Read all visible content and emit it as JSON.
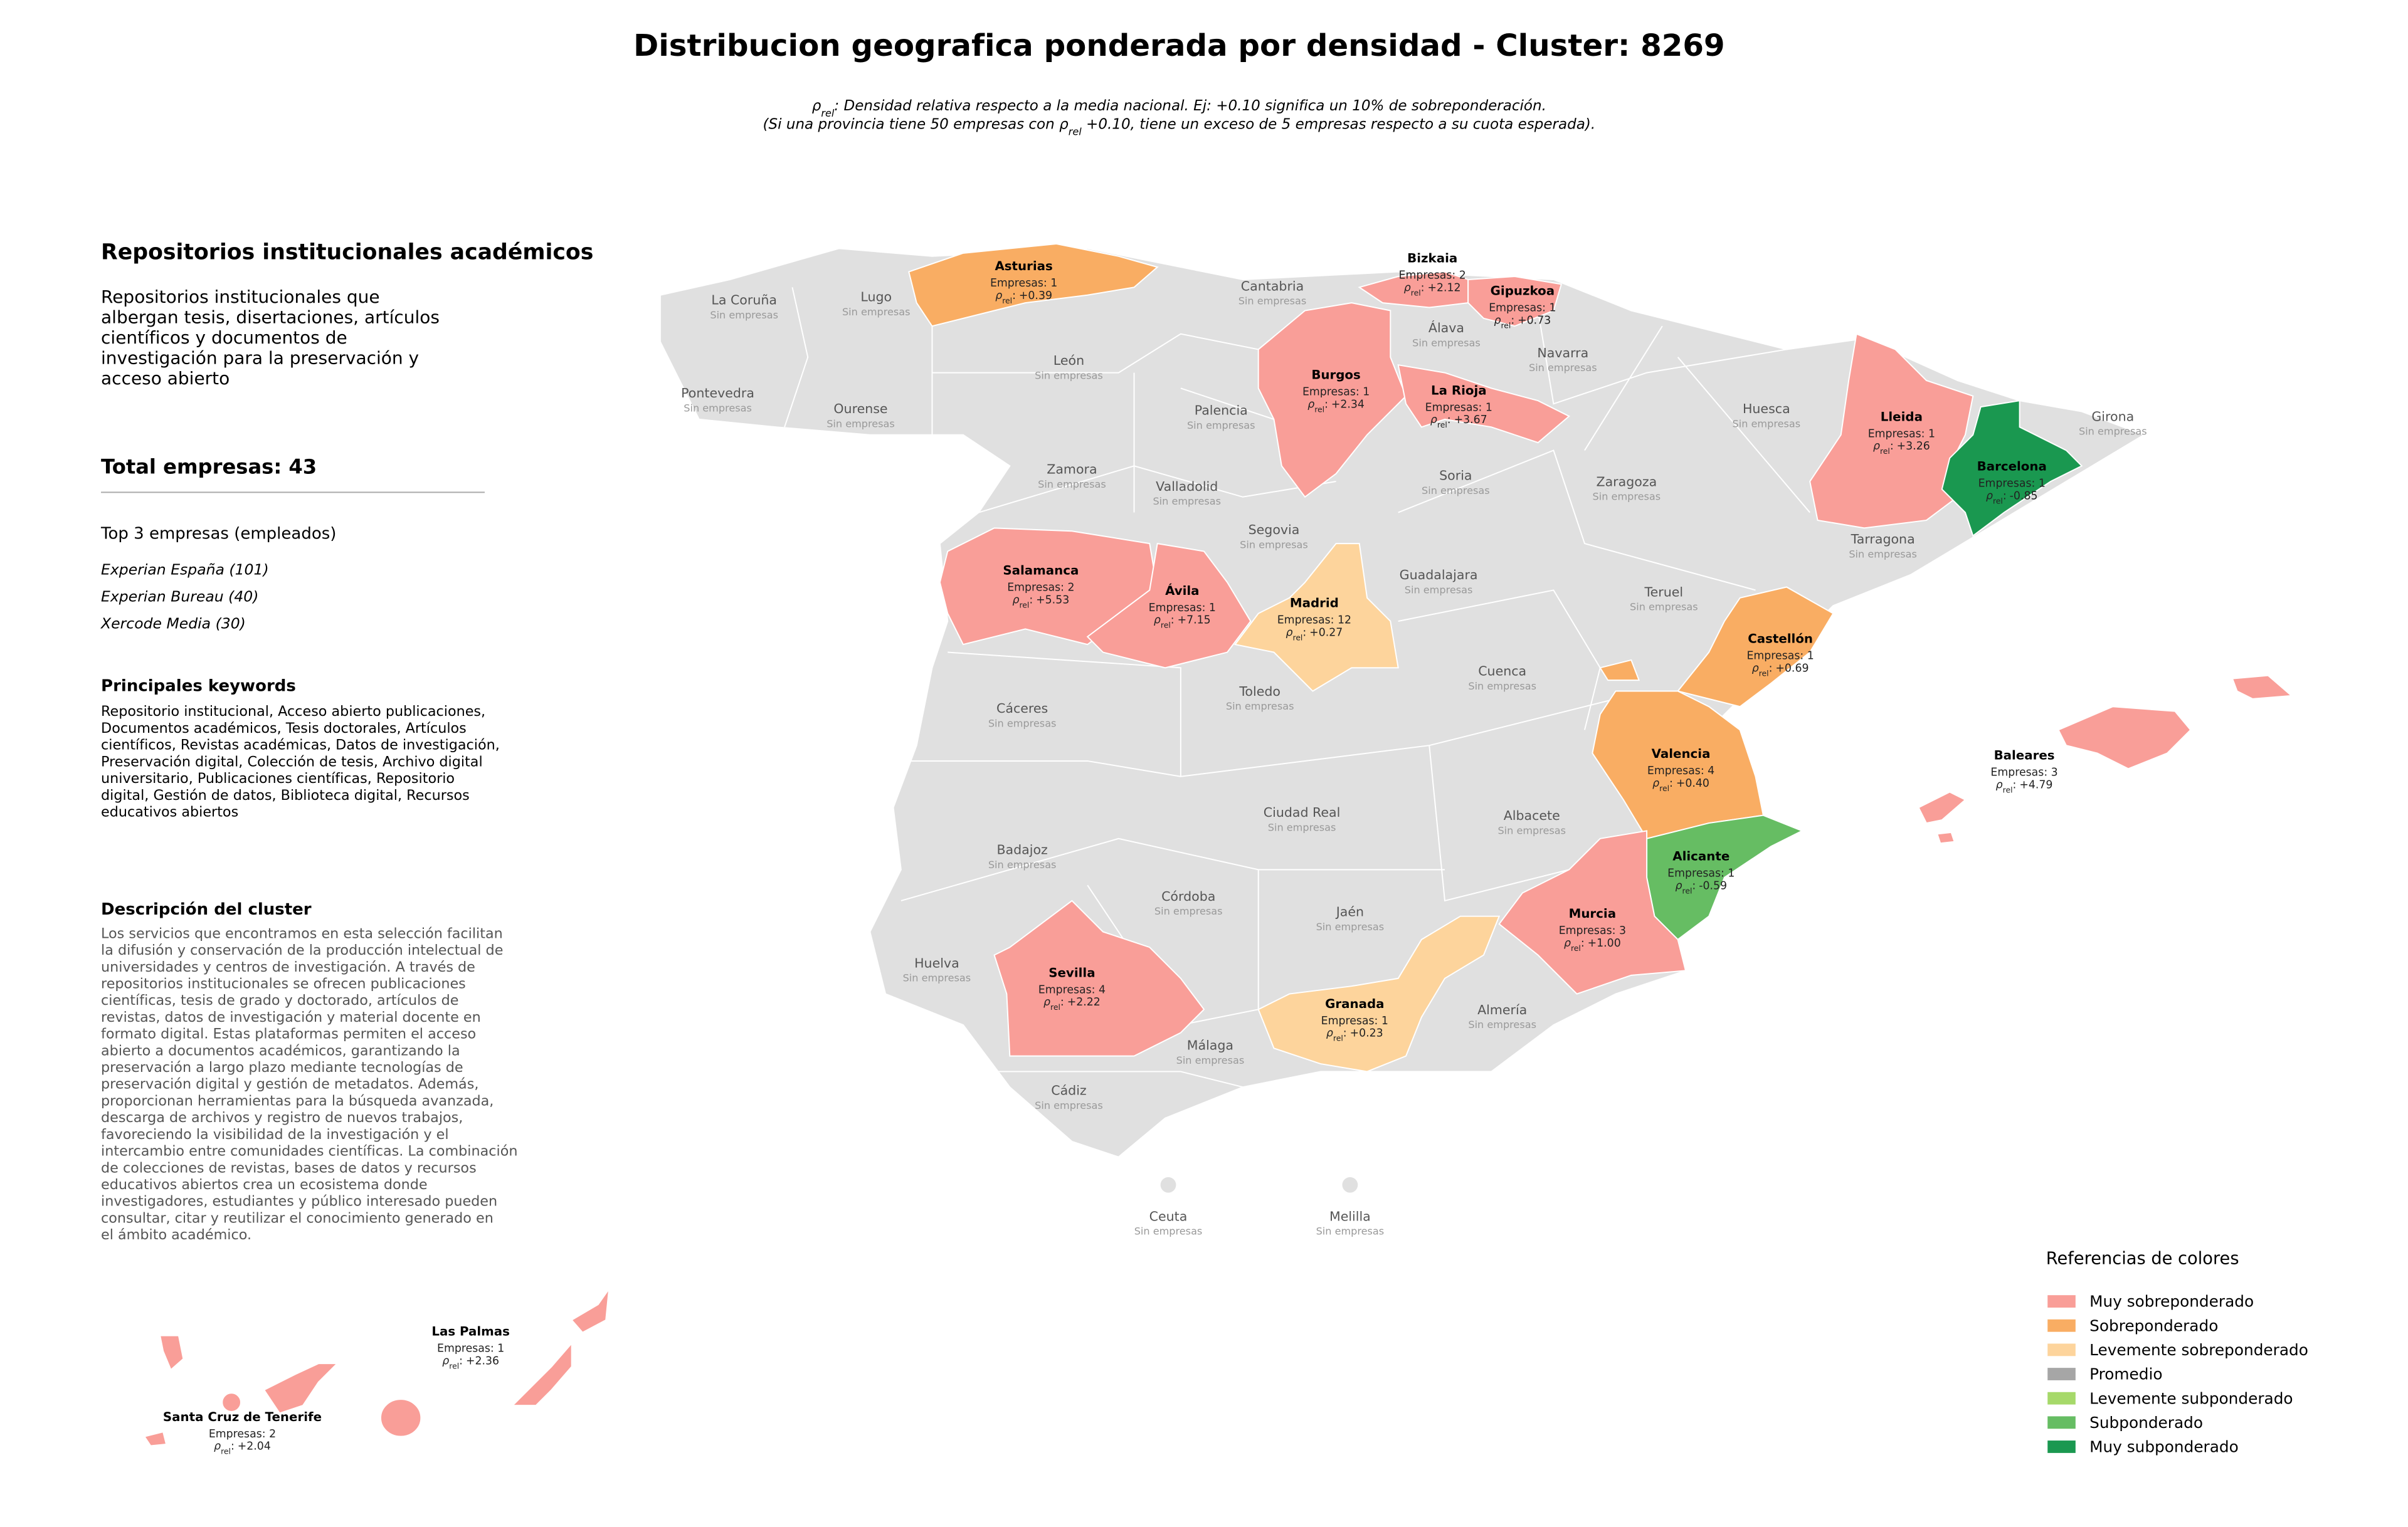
{
  "header": {
    "title": "Distribucion geografica ponderada por densidad - Cluster: 8269",
    "subtitle_line1": [
      "ρ",
      "rel",
      ": Densidad relativa respecto a la media nacional. Ej: +0.10 significa un 10% de sobreponderación."
    ],
    "subtitle_line2": [
      "(Si una provincia tiene 50 empresas con ",
      "ρ",
      "rel",
      " +0.10, tiene un exceso de 5 empresas respecto a su cuota esperada)."
    ]
  },
  "notation": {
    "symbol": "ρ",
    "sub": "rel",
    "colon": ":"
  },
  "panel": {
    "title": "Repositorios institucionales académicos",
    "description": [
      "Repositorios institucionales que",
      "albergan tesis, disertaciones, artículos",
      "científicos y documentos de",
      "investigación para la preservación y",
      "acceso abierto"
    ],
    "total": "Total empresas: 43",
    "top_title": "Top 3 empresas (empleados)",
    "top": [
      "Experian España (101)",
      "Experian Bureau (40)",
      "Xercode Media (30)"
    ],
    "keywords_title": "Principales keywords",
    "keywords": [
      "Repositorio institucional, Acceso abierto publicaciones,",
      "Documentos académicos, Tesis doctorales, Artículos",
      "científicos, Revistas académicas, Datos de investigación,",
      "Preservación digital, Colección de tesis, Archivo digital",
      "universitario, Publicaciones científicas, Repositorio",
      "digital, Gestión de datos, Biblioteca digital, Recursos",
      "educativos abiertos"
    ],
    "cluster_title": "Descripción del cluster",
    "cluster_text": [
      "Los servicios que encontramos en esta selección facilitan",
      "la difusión y conservación de la producción intelectual de",
      "universidades y centros de investigación. A través de",
      "repositorios institucionales se ofrecen publicaciones",
      "científicas, tesis de grado y doctorado, artículos de",
      "revistas, datos de investigación y material docente en",
      "formato digital. Estas plataformas permiten el acceso",
      "abierto a documentos académicos, garantizando la",
      "preservación a largo plazo mediante tecnologías de",
      "preservación digital y gestión de metadatos. Además,",
      "proporcionan herramientas para la búsqueda avanzada,",
      "descarga de archivos y registro de nuevos trabajos,",
      "favoreciendo la visibilidad de la investigación y el",
      "intercambio entre comunidades científicas. La combinación",
      "de colecciones de revistas, bases de datos y recursos",
      "educativos abiertos crea un ecosistema donde",
      "investigadores, estudiantes y público interesado pueden",
      "consultar, citar y reutilizar el conocimiento generado en",
      "el ámbito académico."
    ]
  },
  "provinces": [
    {
      "name": "La Coruña",
      "companies": "Sin empresas"
    },
    {
      "name": "Lugo",
      "companies": "Sin empresas"
    },
    {
      "name": "Asturias",
      "companies": "Empresas: 1",
      "rho": "+0.39",
      "category": 1
    },
    {
      "name": "Cantabria",
      "companies": "Sin empresas"
    },
    {
      "name": "Bizkaia",
      "companies": "Empresas: 2",
      "rho": "+2.12",
      "category": 0
    },
    {
      "name": "Gipuzkoa",
      "companies": "Empresas: 1",
      "rho": "+0.73",
      "category": 0
    },
    {
      "name": "Álava",
      "companies": "Sin empresas"
    },
    {
      "name": "Navarra",
      "companies": "Sin empresas"
    },
    {
      "name": "León",
      "companies": "Sin empresas"
    },
    {
      "name": "Burgos",
      "companies": "Empresas: 1",
      "rho": "+2.34",
      "category": 0
    },
    {
      "name": "La Rioja",
      "companies": "Empresas: 1",
      "rho": "+3.67",
      "category": 0
    },
    {
      "name": "Pontevedra",
      "companies": "Sin empresas"
    },
    {
      "name": "Ourense",
      "companies": "Sin empresas"
    },
    {
      "name": "Palencia",
      "companies": "Sin empresas"
    },
    {
      "name": "Huesca",
      "companies": "Sin empresas"
    },
    {
      "name": "Lleida",
      "companies": "Empresas: 1",
      "rho": "+3.26",
      "category": 0
    },
    {
      "name": "Girona",
      "companies": "Sin empresas"
    },
    {
      "name": "Barcelona",
      "companies": "Empresas: 1",
      "rho": "-0.85",
      "category": 6
    },
    {
      "name": "Zamora",
      "companies": "Sin empresas"
    },
    {
      "name": "Soria",
      "companies": "Sin empresas"
    },
    {
      "name": "Zaragoza",
      "companies": "Sin empresas"
    },
    {
      "name": "Valladolid",
      "companies": "Sin empresas"
    },
    {
      "name": "Segovia",
      "companies": "Sin empresas"
    },
    {
      "name": "Tarragona",
      "companies": "Sin empresas"
    },
    {
      "name": "Salamanca",
      "companies": "Empresas: 2",
      "rho": "+5.53",
      "category": 0
    },
    {
      "name": "Guadalajara",
      "companies": "Sin empresas"
    },
    {
      "name": "Ávila",
      "companies": "Empresas: 1",
      "rho": "+7.15",
      "category": 0
    },
    {
      "name": "Teruel",
      "companies": "Sin empresas"
    },
    {
      "name": "Madrid",
      "companies": "Empresas: 12",
      "rho": "+0.27",
      "category": 2
    },
    {
      "name": "Castellón",
      "companies": "Empresas: 1",
      "rho": "+0.69",
      "category": 1
    },
    {
      "name": "Cuenca",
      "companies": "Sin empresas"
    },
    {
      "name": "Toledo",
      "companies": "Sin empresas"
    },
    {
      "name": "Cáceres",
      "companies": "Sin empresas"
    },
    {
      "name": "Baleares",
      "companies": "Empresas: 3",
      "rho": "+4.79",
      "category": 0
    },
    {
      "name": "Valencia",
      "companies": "Empresas: 4",
      "rho": "+0.40",
      "category": 1
    },
    {
      "name": "Ciudad Real",
      "companies": "Sin empresas"
    },
    {
      "name": "Albacete",
      "companies": "Sin empresas"
    },
    {
      "name": "Badajoz",
      "companies": "Sin empresas"
    },
    {
      "name": "Alicante",
      "companies": "Empresas: 1",
      "rho": "-0.59",
      "category": 5
    },
    {
      "name": "Córdoba",
      "companies": "Sin empresas"
    },
    {
      "name": "Jaén",
      "companies": "Sin empresas"
    },
    {
      "name": "Murcia",
      "companies": "Empresas: 3",
      "rho": "+1.00",
      "category": 0
    },
    {
      "name": "Huelva",
      "companies": "Sin empresas"
    },
    {
      "name": "Sevilla",
      "companies": "Empresas: 4",
      "rho": "+2.22",
      "category": 0
    },
    {
      "name": "Granada",
      "companies": "Empresas: 1",
      "rho": "+0.23",
      "category": 2
    },
    {
      "name": "Almería",
      "companies": "Sin empresas"
    },
    {
      "name": "Málaga",
      "companies": "Sin empresas"
    },
    {
      "name": "Cádiz",
      "companies": "Sin empresas"
    },
    {
      "name": "Ceuta",
      "companies": "Sin empresas"
    },
    {
      "name": "Melilla",
      "companies": "Sin empresas"
    },
    {
      "name": "Las Palmas",
      "companies": "Empresas: 1",
      "rho": "+2.36",
      "category": 0
    },
    {
      "name": "Santa Cruz de Tenerife",
      "companies": "Empresas: 2",
      "rho": "+2.04",
      "category": 0
    }
  ],
  "legend": {
    "title": "Referencias de colores",
    "items": [
      {
        "label": "Muy sobreponderado",
        "color": "#f99e98"
      },
      {
        "label": "Sobreponderado",
        "color": "#f9ad63"
      },
      {
        "label": "Levemente sobreponderado",
        "color": "#fdd49c"
      },
      {
        "label": "Promedio",
        "color": "#a6a6a6"
      },
      {
        "label": "Levemente subponderado",
        "color": "#a6d96a"
      },
      {
        "label": "Subponderado",
        "color": "#66bd63"
      },
      {
        "label": "Muy subponderado",
        "color": "#1a9850"
      }
    ]
  }
}
